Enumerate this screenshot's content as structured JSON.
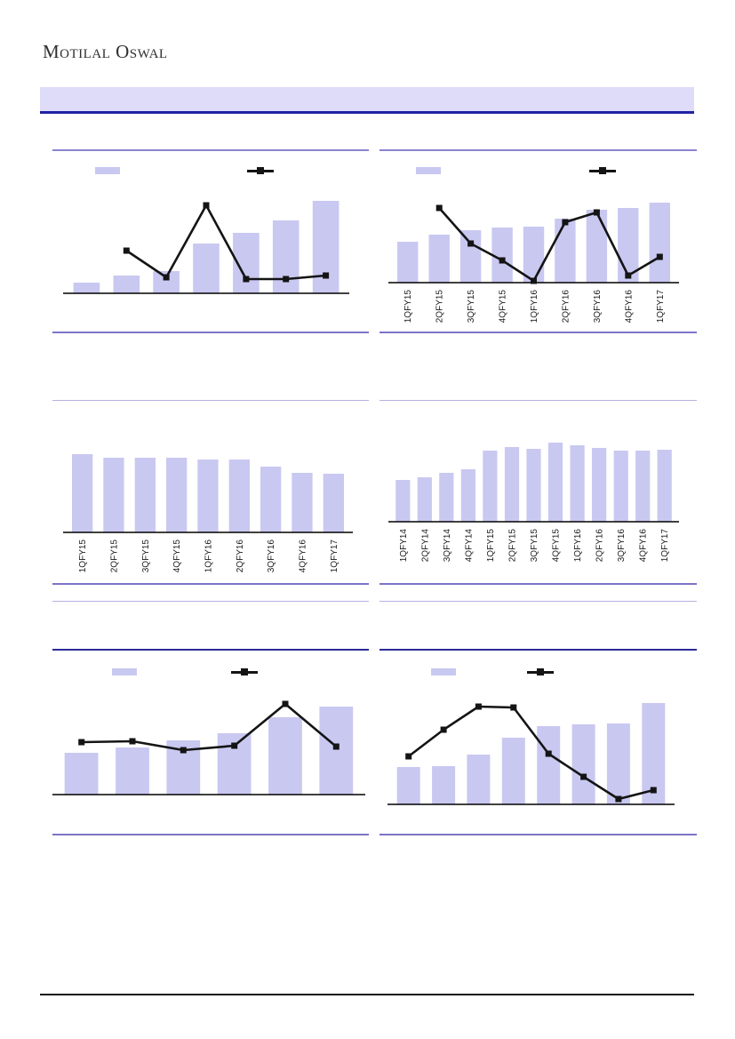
{
  "brand": {
    "logo_text": "Motilal Oswal"
  },
  "header": {
    "band_fill": "#dedcf8",
    "band_border_color": "#2121a5"
  },
  "colors": {
    "bar": "#c9c8f1",
    "line": "#141414",
    "axis": "#000000",
    "rule_purple": "#7b74c6",
    "rule_light": "#b6b1e0",
    "rule_navy": "#2b2b97",
    "label_text": "#1a1a1a"
  },
  "chart_data": [
    {
      "position": "top-left",
      "type": "bar+line",
      "x_labels_visible": false,
      "categories": [],
      "bar_values": [
        12,
        20,
        25,
        56,
        68,
        82,
        104
      ],
      "line_values": [
        null,
        48,
        18,
        99,
        16,
        16,
        20
      ],
      "value_scale": "relative height (no y-axis shown)",
      "legend": {
        "bar_swatch": true,
        "line_marker": true,
        "labels_visible": false
      }
    },
    {
      "position": "top-right",
      "type": "bar+line",
      "x_labels_visible": true,
      "categories": [
        "1QFY15",
        "2QFY15",
        "3QFY15",
        "4QFY15",
        "1QFY16",
        "2QFY16",
        "3QFY16",
        "4QFY16",
        "1QFY17"
      ],
      "bar_values": [
        46,
        54,
        59,
        62,
        63,
        72,
        82,
        84,
        90
      ],
      "line_values": [
        null,
        84,
        44,
        25,
        2,
        68,
        79,
        8,
        29
      ],
      "value_scale": "relative height (no y-axis shown)",
      "legend": {
        "bar_swatch": true,
        "line_marker": true,
        "labels_visible": false
      }
    },
    {
      "position": "middle-left",
      "type": "bar",
      "x_labels_visible": true,
      "categories": [
        "1QFY15",
        "2QFY15",
        "3QFY15",
        "4QFY15",
        "1QFY16",
        "2QFY16",
        "3QFY16",
        "4QFY16",
        "1QFY17"
      ],
      "bar_values": [
        88,
        84,
        84,
        84,
        82,
        82,
        74,
        67,
        66
      ],
      "line_values": null,
      "value_scale": "relative height (no y-axis shown)",
      "legend": null
    },
    {
      "position": "middle-right",
      "type": "bar",
      "x_labels_visible": true,
      "categories": [
        "1QFY14",
        "2QFY14",
        "3QFY14",
        "4QFY14",
        "1QFY15",
        "2QFY15",
        "3QFY15",
        "4QFY15",
        "1QFY16",
        "2QFY16",
        "3QFY16",
        "4QFY16",
        "1QFY17"
      ],
      "bar_values": [
        47,
        50,
        55,
        59,
        80,
        84,
        82,
        89,
        86,
        83,
        80,
        80,
        81
      ],
      "line_values": null,
      "value_scale": "relative height (no y-axis shown)",
      "legend": null
    },
    {
      "position": "bottom-left",
      "type": "bar+line",
      "x_labels_visible": false,
      "categories": [],
      "bar_values": [
        47,
        53,
        61,
        69,
        87,
        99
      ],
      "line_values": [
        59,
        60,
        50,
        55,
        102,
        54
      ],
      "value_scale": "relative height (no y-axis shown)",
      "legend": {
        "bar_swatch": true,
        "line_marker": true,
        "labels_visible": false
      }
    },
    {
      "position": "bottom-right",
      "type": "bar+line",
      "x_labels_visible": false,
      "categories": [],
      "bar_values": [
        42,
        43,
        56,
        75,
        88,
        90,
        91,
        114
      ],
      "line_values": [
        54,
        84,
        110,
        109,
        57,
        31,
        6,
        16
      ],
      "value_scale": "relative height (no y-axis shown)",
      "legend": {
        "bar_swatch": true,
        "line_marker": true,
        "labels_visible": false
      }
    }
  ]
}
